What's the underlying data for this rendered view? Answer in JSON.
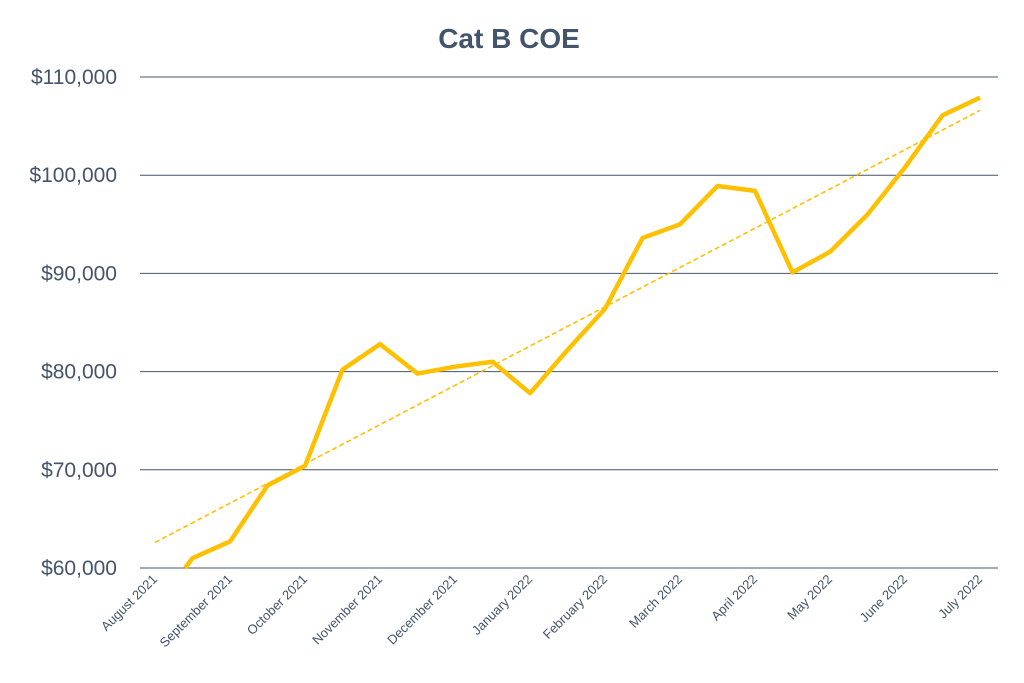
{
  "chart_data": {
    "type": "line",
    "title": "Cat B COE",
    "xlabel": "",
    "ylabel": "",
    "ylim": [
      60000,
      110000
    ],
    "y_ticks": [
      60000,
      70000,
      80000,
      90000,
      100000,
      110000
    ],
    "y_tick_labels": [
      "$60,000",
      "$70,000",
      "$80,000",
      "$90,000",
      "$100,000",
      "$110,000"
    ],
    "x_range": [
      0,
      22
    ],
    "x_tick_positions": [
      0,
      2,
      4,
      6,
      8,
      10,
      12,
      14,
      16,
      18,
      20,
      22
    ],
    "x_tick_labels": [
      "August 2021",
      "September 2021",
      "October 2021",
      "November 2021",
      "December 2021",
      "January 2022",
      "February 2022",
      "March 2022",
      "April 2022",
      "May 2022",
      "June 2022",
      "July 2022"
    ],
    "grid": true,
    "series": [
      {
        "name": "Cat B COE",
        "color": "#ffc000",
        "x": [
          0.8,
          1,
          2,
          3,
          4,
          5,
          6,
          7,
          8,
          9,
          10,
          11,
          12,
          13,
          14,
          15,
          16,
          17,
          18,
          19,
          20,
          21,
          22
        ],
        "values": [
          60000,
          61000,
          62700,
          68400,
          70400,
          80200,
          82800,
          79800,
          80500,
          81000,
          77800,
          82200,
          86400,
          93600,
          95000,
          98900,
          98400,
          90100,
          92200,
          96000,
          100800,
          106100,
          107900
        ]
      }
    ],
    "trendline": {
      "type": "linear",
      "style": "dashed",
      "color": "#ffc000",
      "x": [
        0,
        22
      ],
      "values": [
        62600,
        106600
      ]
    }
  }
}
